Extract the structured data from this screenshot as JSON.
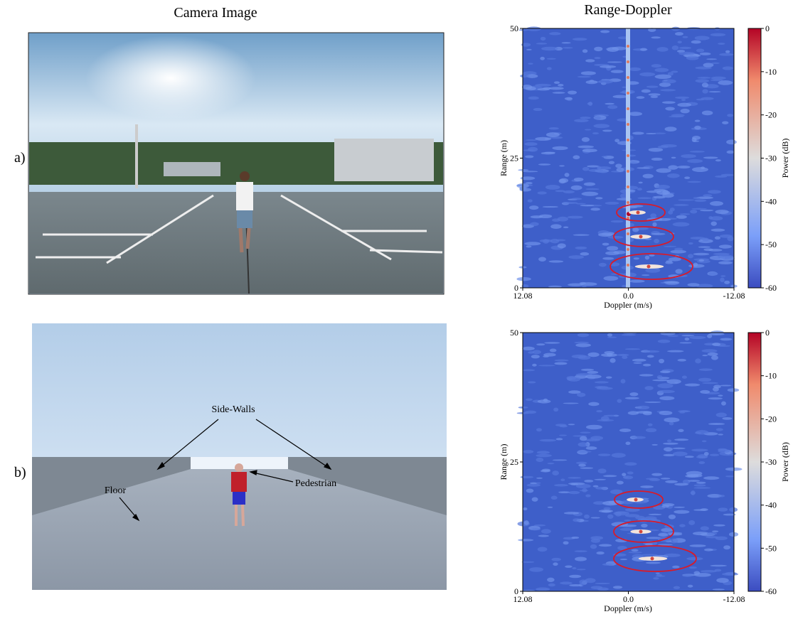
{
  "header": {
    "camera_title": "Camera Image",
    "rd_title": "Range-Doppler"
  },
  "rows": [
    {
      "label": "a)"
    },
    {
      "label": "b)",
      "annotations": [
        "Side-Walls",
        "Floor",
        "Pedestrian"
      ]
    }
  ],
  "range_doppler": {
    "y_label": "Range (m)",
    "x_label": "Doppler (m/s)",
    "colorbar_label": "Power (dB)",
    "y_ticks": [
      "0",
      "25",
      "50"
    ],
    "x_ticks": [
      "12.08",
      "0.0",
      "-12.08"
    ],
    "colorbar_ticks": [
      "0",
      "-10",
      "-20",
      "-30",
      "-40",
      "-50",
      "-60"
    ]
  }
}
